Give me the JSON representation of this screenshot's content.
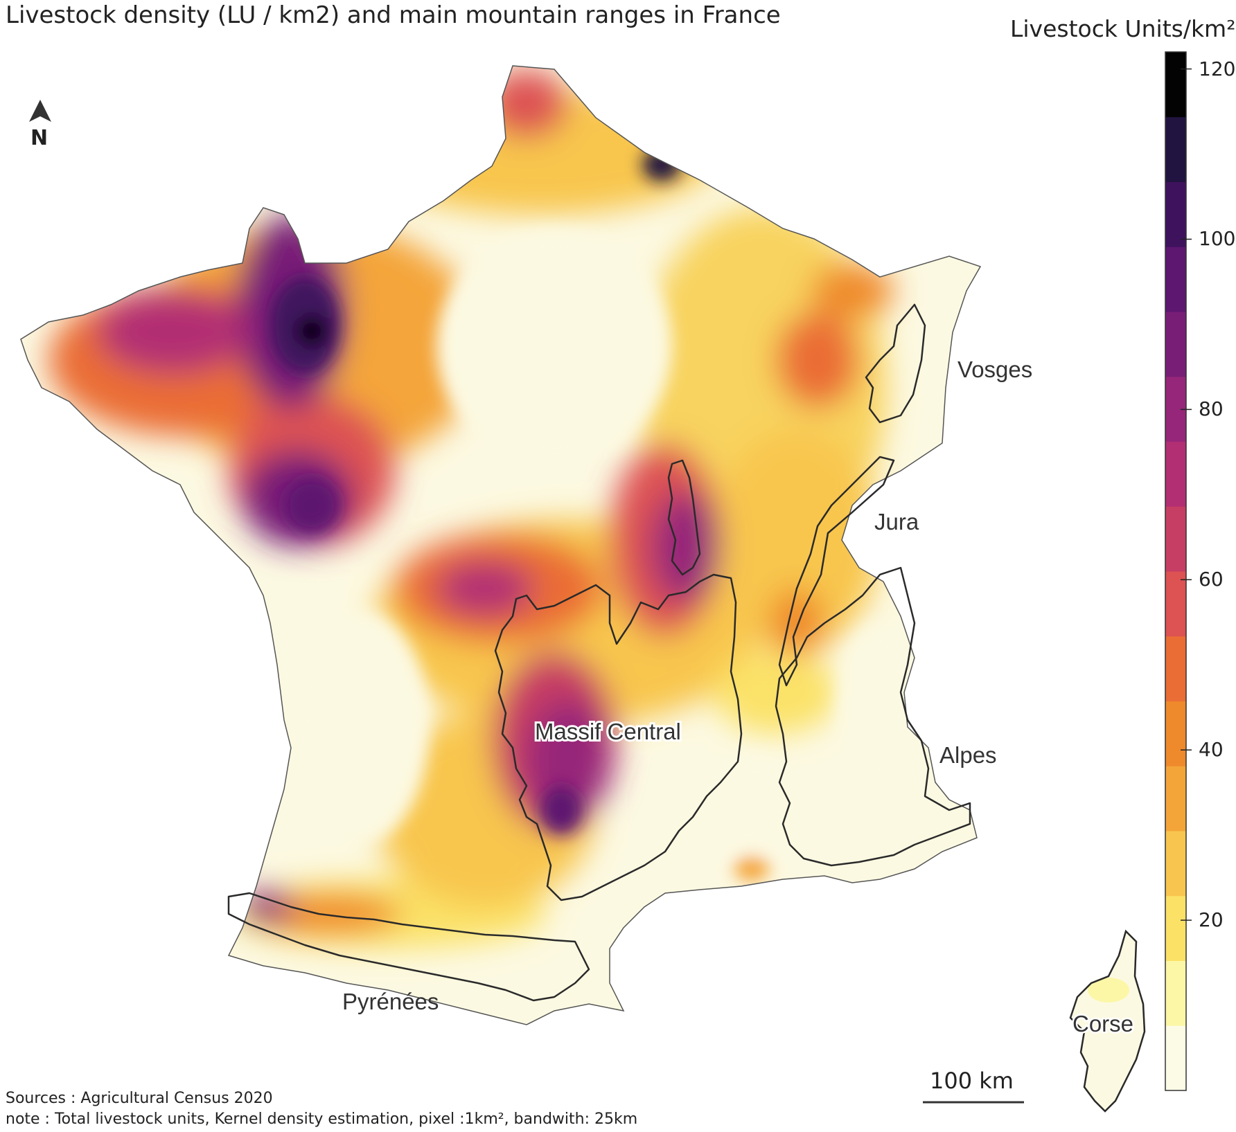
{
  "title": "Livestock density (LU / km2) and main mountain ranges in France",
  "north_arrow": {
    "label": "N",
    "icon": "north-arrow-icon"
  },
  "legend": {
    "title": "Livestock Units/km²",
    "min": 0,
    "max": 122,
    "ticks": [
      {
        "value": 20,
        "label": "20"
      },
      {
        "value": 40,
        "label": "40"
      },
      {
        "value": 60,
        "label": "60"
      },
      {
        "value": 80,
        "label": "80"
      },
      {
        "value": 100,
        "label": "100"
      },
      {
        "value": 120,
        "label": "120"
      }
    ],
    "colors": [
      "#fcfbe6",
      "#fcf7a7",
      "#fbe267",
      "#f8c64e",
      "#f4a53a",
      "#ef8a2c",
      "#ea6d36",
      "#dd5252",
      "#c73e64",
      "#b22f73",
      "#962679",
      "#781e77",
      "#5d1770",
      "#3f125e",
      "#221440",
      "#030304"
    ]
  },
  "range_labels": {
    "vosges": "Vosges",
    "jura": "Jura",
    "alpes": "Alpes",
    "massif_central": "Massif Central",
    "pyrenees": "Pyrénées",
    "corse": "Corse"
  },
  "scale_bar": {
    "label": "100 km"
  },
  "sources": {
    "line1": "Sources : Agricultural Census 2020",
    "line2": "note : Total livestock units, Kernel density estimation, pixel :1km², bandwith: 25km"
  }
}
